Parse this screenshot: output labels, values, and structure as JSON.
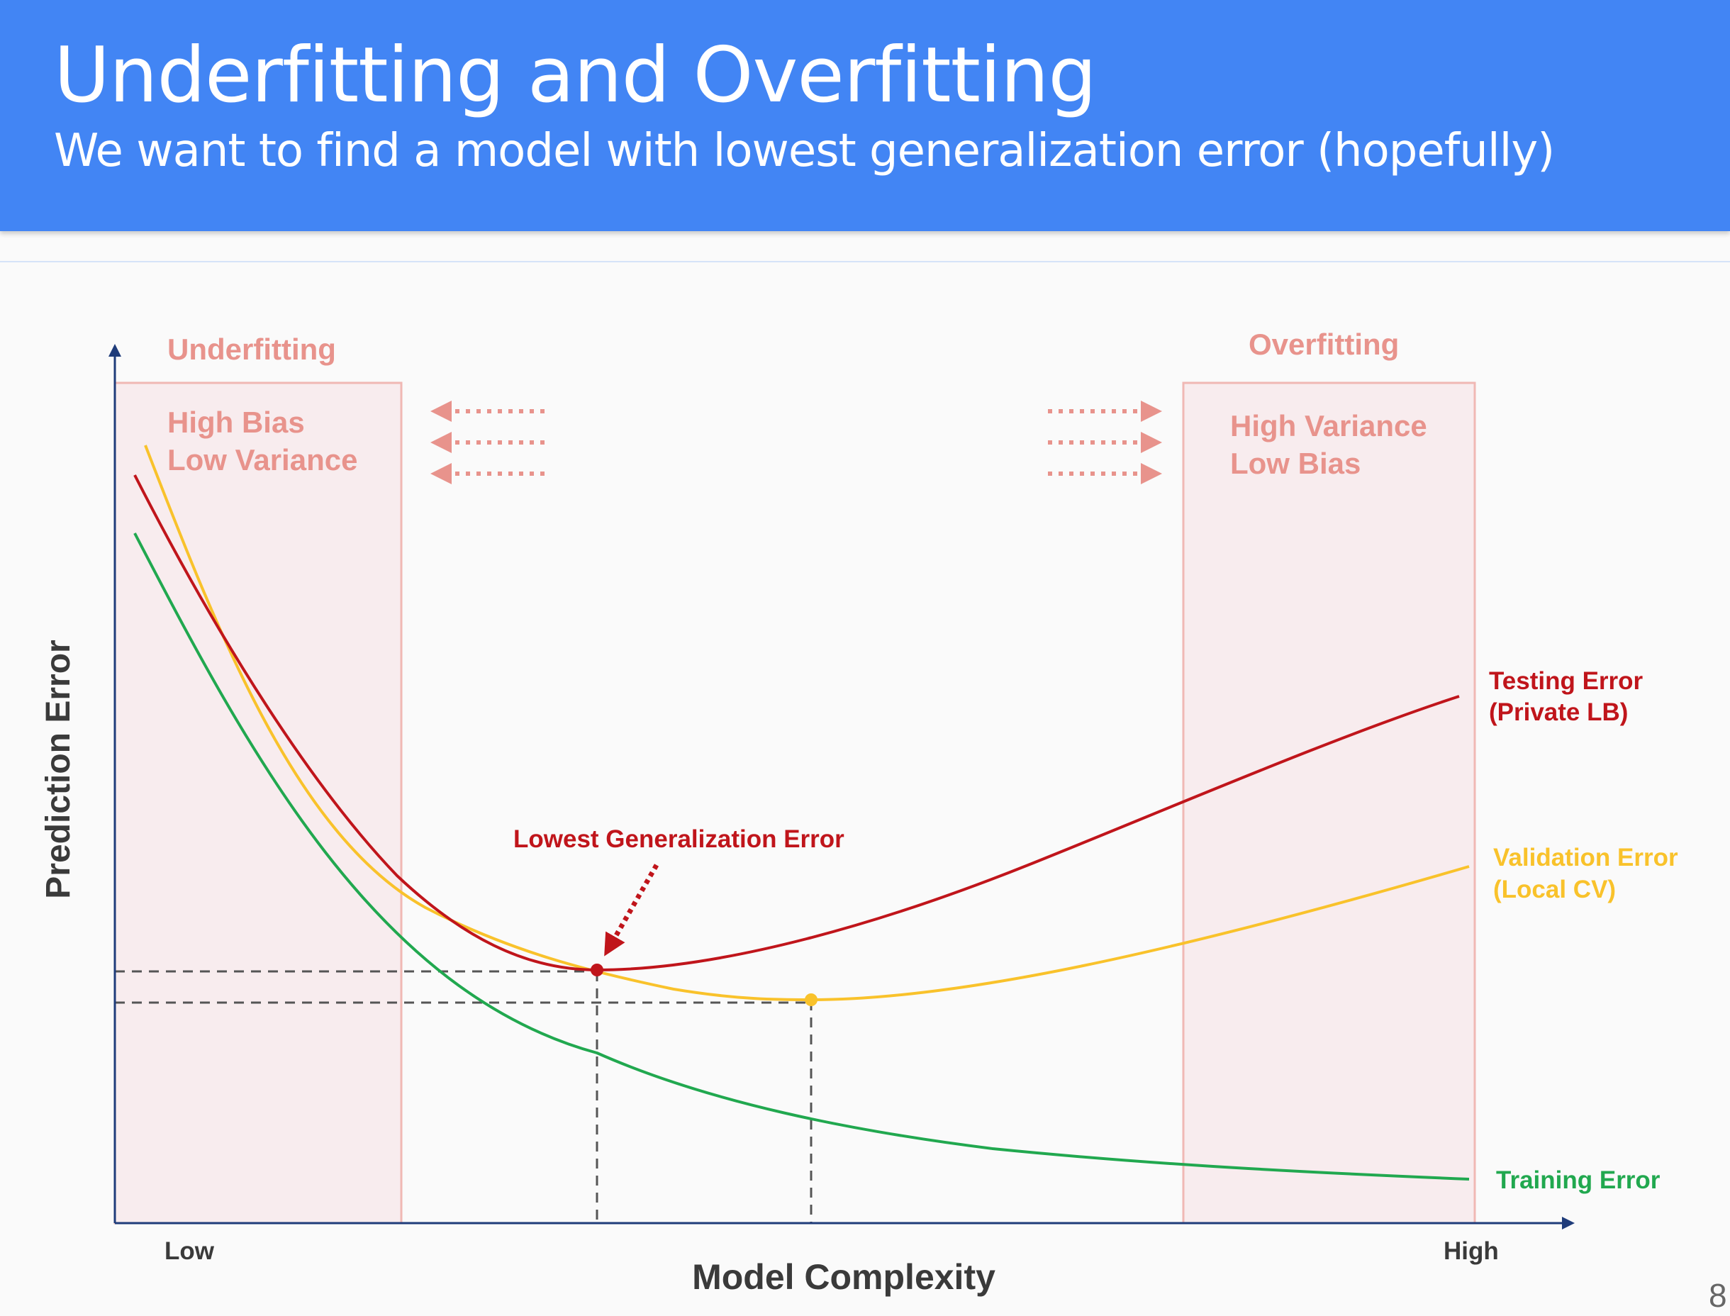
{
  "slide": {
    "title": "Underfitting and Overfitting",
    "subtitle": "We want to find a model with lowest generalization error (hopefully)",
    "page_number": "8"
  },
  "diagram": {
    "y_axis_label": "Prediction Error",
    "x_axis_label": "Model Complexity",
    "x_low_label": "Low",
    "x_high_label": "High",
    "underfitting": {
      "heading": "Underfitting",
      "line1": "High Bias",
      "line2": "Low Variance"
    },
    "overfitting": {
      "heading": "Overfitting",
      "line1": "High Variance",
      "line2": "Low Bias"
    },
    "annotation": "Lowest Generalization Error",
    "curves": {
      "testing": {
        "line1": "Testing Error",
        "line2": "(Private LB)"
      },
      "validation": {
        "line1": "Validation Error",
        "line2": "(Local CV)"
      },
      "training": {
        "line1": "Training Error"
      }
    }
  },
  "colors": {
    "header": "#4285f4",
    "zone_fill": "#f8ecee",
    "zone_stroke": "#f0b8b4",
    "zone_text": "#e8938c",
    "axis": "#1f3c7a",
    "testing": "#c0151b",
    "validation": "#f9c22b",
    "training": "#21a84f",
    "guide": "#555555"
  }
}
